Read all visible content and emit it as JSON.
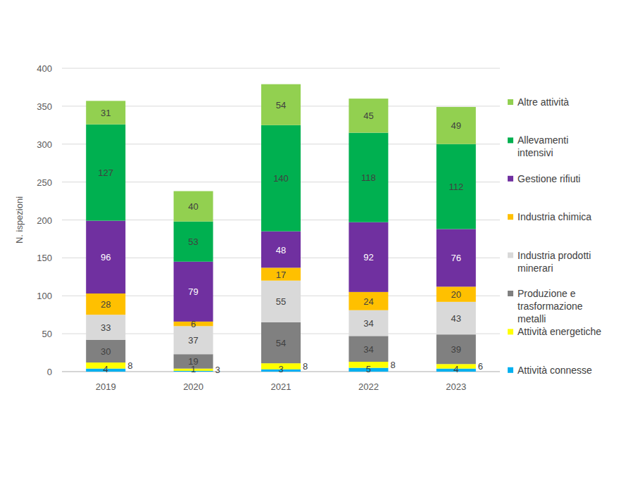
{
  "chart_data": {
    "type": "bar",
    "stacked": true,
    "data_labels": true,
    "grid": true,
    "legend": "right",
    "y_label": "N. ispezioni",
    "categories": [
      "2019",
      "2020",
      "2021",
      "2022",
      "2023"
    ],
    "ylim": [
      0,
      400
    ],
    "yticks": [
      0,
      50,
      100,
      150,
      200,
      250,
      300,
      350,
      400
    ],
    "series": [
      {
        "name": "Attività connesse",
        "color": "#00b0f0",
        "values": [
          4,
          1,
          3,
          5,
          4
        ]
      },
      {
        "name": "Attività energetiche",
        "color": "#ffff00",
        "values": [
          8,
          3,
          8,
          8,
          6
        ]
      },
      {
        "name": "Produzione e trasformazione metalli",
        "color": "#808080",
        "values": [
          30,
          19,
          54,
          34,
          39
        ]
      },
      {
        "name": "Industria prodotti minerari",
        "color": "#d9d9d9",
        "values": [
          33,
          37,
          55,
          34,
          43
        ]
      },
      {
        "name": "Industria chimica",
        "color": "#ffc000",
        "values": [
          28,
          6,
          17,
          24,
          20
        ]
      },
      {
        "name": "Gestione rifiuti",
        "color": "#7030a0",
        "values": [
          96,
          79,
          48,
          92,
          76
        ]
      },
      {
        "name": "Allevamenti intensivi",
        "color": "#00b050",
        "values": [
          127,
          53,
          140,
          118,
          112
        ]
      },
      {
        "name": "Altre attività",
        "color": "#92d050",
        "values": [
          31,
          40,
          54,
          45,
          49
        ]
      }
    ]
  }
}
